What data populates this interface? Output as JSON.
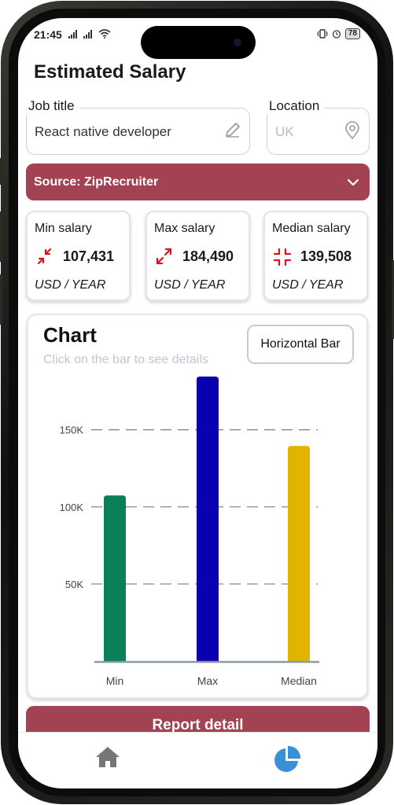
{
  "status_bar": {
    "time": "21:45",
    "battery": "78"
  },
  "page_title": "Estimated Salary",
  "job_title": {
    "label": "Job title",
    "value": "React native developer"
  },
  "location": {
    "label": "Location",
    "placeholder": "UK"
  },
  "source": {
    "label": "Source: ZipRecruiter"
  },
  "stats": [
    {
      "label": "Min salary",
      "value": "107,431",
      "unit": "USD / YEAR",
      "icon": "arrows-in-icon"
    },
    {
      "label": "Max salary",
      "value": "184,490",
      "unit": "USD / YEAR",
      "icon": "arrows-out-icon"
    },
    {
      "label": "Median salary",
      "value": "139,508",
      "unit": "USD / YEAR",
      "icon": "arrows-center-icon"
    }
  ],
  "chart": {
    "title": "Chart",
    "hint": "Click on the bar to see details",
    "type_button": "Horizontal Bar"
  },
  "chart_data": {
    "type": "bar",
    "categories": [
      "Min",
      "Max",
      "Median"
    ],
    "values": [
      107431,
      184490,
      139508
    ],
    "colors": [
      "#0a7f5a",
      "#0b00b0",
      "#e0b400"
    ],
    "ylim": [
      0,
      184490
    ],
    "yticks": [
      50000,
      100000,
      150000
    ],
    "ytick_labels": [
      "50K",
      "100K",
      "150K"
    ],
    "grid": "dashed-horizontal",
    "legend": "none"
  },
  "report_button": "Report detail",
  "colors": {
    "accent": "#a34252",
    "tab_active": "#3a8fd6",
    "tab_inactive": "#777777"
  },
  "tabs": [
    {
      "icon": "home-icon",
      "active": false
    },
    {
      "icon": "pie-chart-icon",
      "active": true
    }
  ]
}
